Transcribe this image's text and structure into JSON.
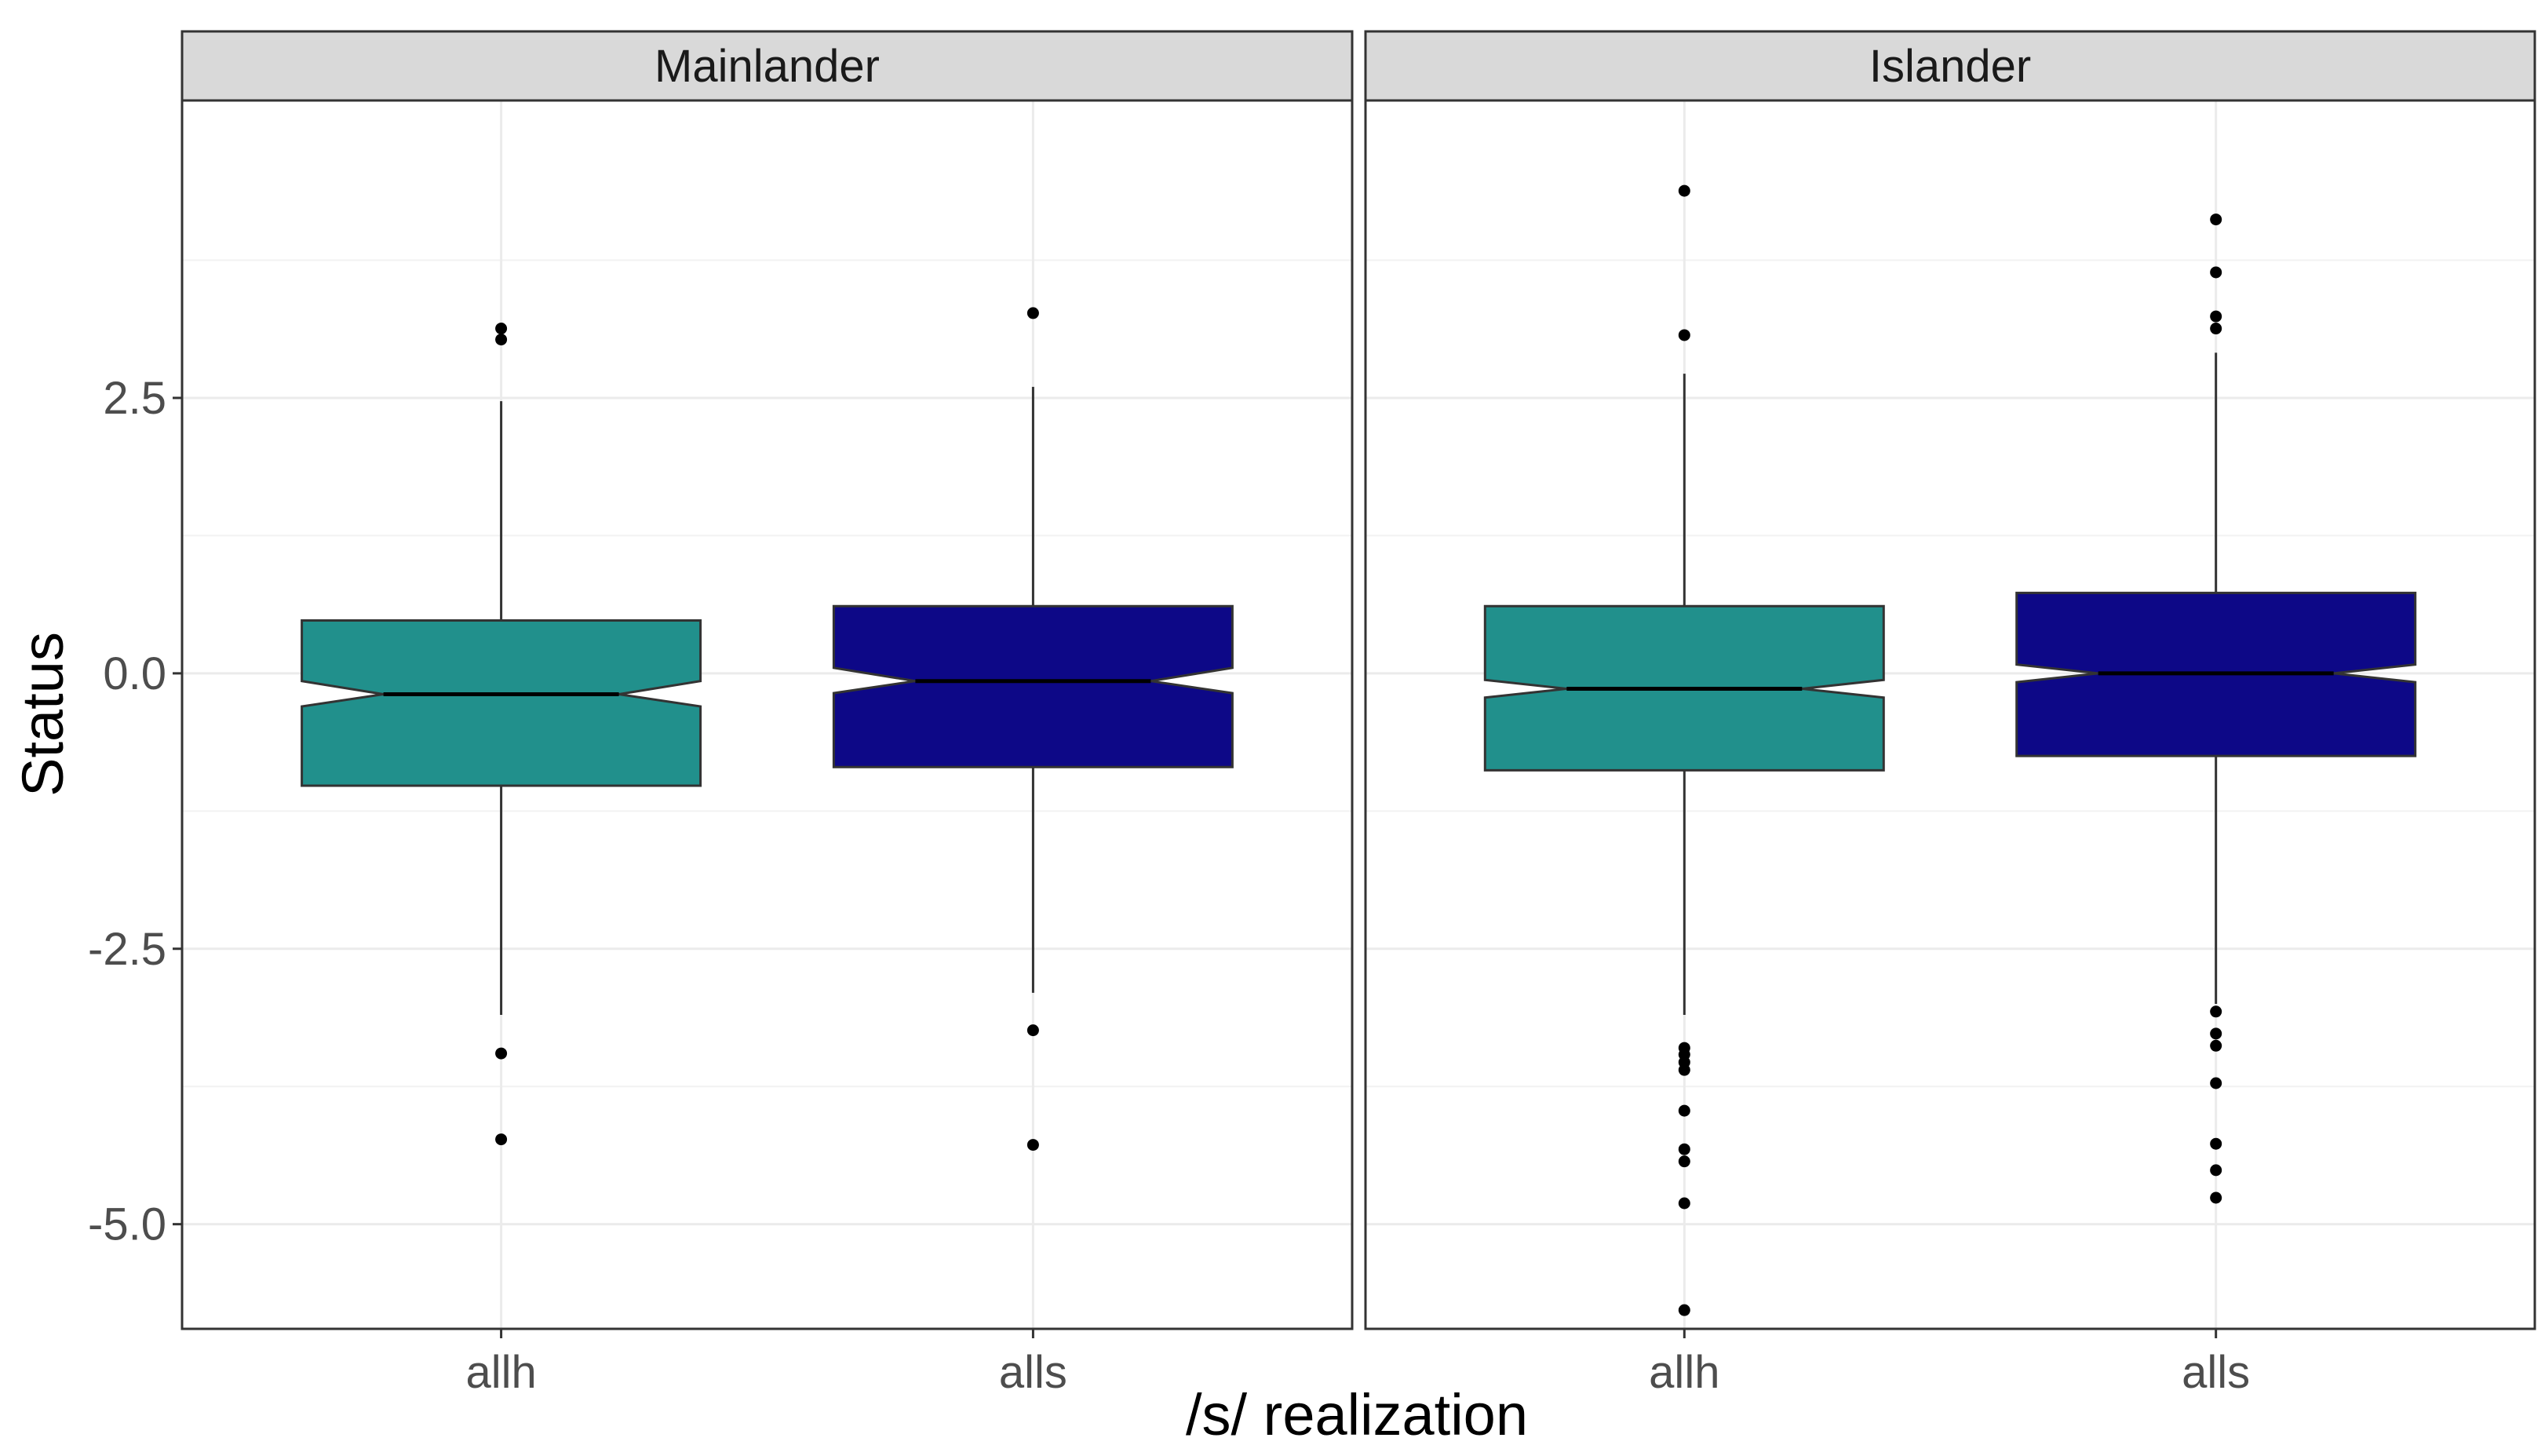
{
  "chart_data": {
    "type": "boxplot",
    "xlabel": "/s/ realization",
    "ylabel": "Status",
    "ylim": [
      -5.95,
      5.2
    ],
    "yticks": [
      2.5,
      0.0,
      -2.5,
      -5.0
    ],
    "ytick_labels": [
      "2.5",
      "0.0",
      "-2.5",
      "-5.0"
    ],
    "grid": true,
    "notched": true,
    "categories": [
      "allh",
      "alls"
    ],
    "colors": {
      "allh": "#21908C",
      "alls": "#0D0887"
    },
    "panels": [
      {
        "name": "Mainlander",
        "boxes": [
          {
            "category": "allh",
            "q1": -1.02,
            "median": -0.19,
            "q3": 0.48,
            "notch_low": -0.3,
            "notch_high": -0.07,
            "whisker_low": -3.1,
            "whisker_high": 2.47,
            "outliers": [
              3.13,
              3.03,
              -3.45,
              -4.23
            ]
          },
          {
            "category": "alls",
            "q1": -0.85,
            "median": -0.07,
            "q3": 0.61,
            "notch_low": -0.18,
            "notch_high": 0.05,
            "whisker_low": -2.9,
            "whisker_high": 2.6,
            "outliers": [
              3.27,
              -3.24,
              -4.28
            ]
          }
        ]
      },
      {
        "name": "Islander",
        "boxes": [
          {
            "category": "allh",
            "q1": -0.88,
            "median": -0.14,
            "q3": 0.61,
            "notch_low": -0.22,
            "notch_high": -0.06,
            "whisker_low": -3.1,
            "whisker_high": 2.72,
            "outliers": [
              4.38,
              3.07,
              -3.4,
              -3.46,
              -3.53,
              -3.6,
              -3.97,
              -4.32,
              -4.43,
              -4.81,
              -5.78
            ]
          },
          {
            "category": "alls",
            "q1": -0.75,
            "median": 0.0,
            "q3": 0.73,
            "notch_low": -0.08,
            "notch_high": 0.08,
            "whisker_low": -3.0,
            "whisker_high": 2.91,
            "outliers": [
              4.12,
              3.64,
              3.24,
              3.13,
              -3.07,
              -3.27,
              -3.38,
              -3.72,
              -4.27,
              -4.51,
              -4.76
            ]
          }
        ]
      }
    ]
  }
}
